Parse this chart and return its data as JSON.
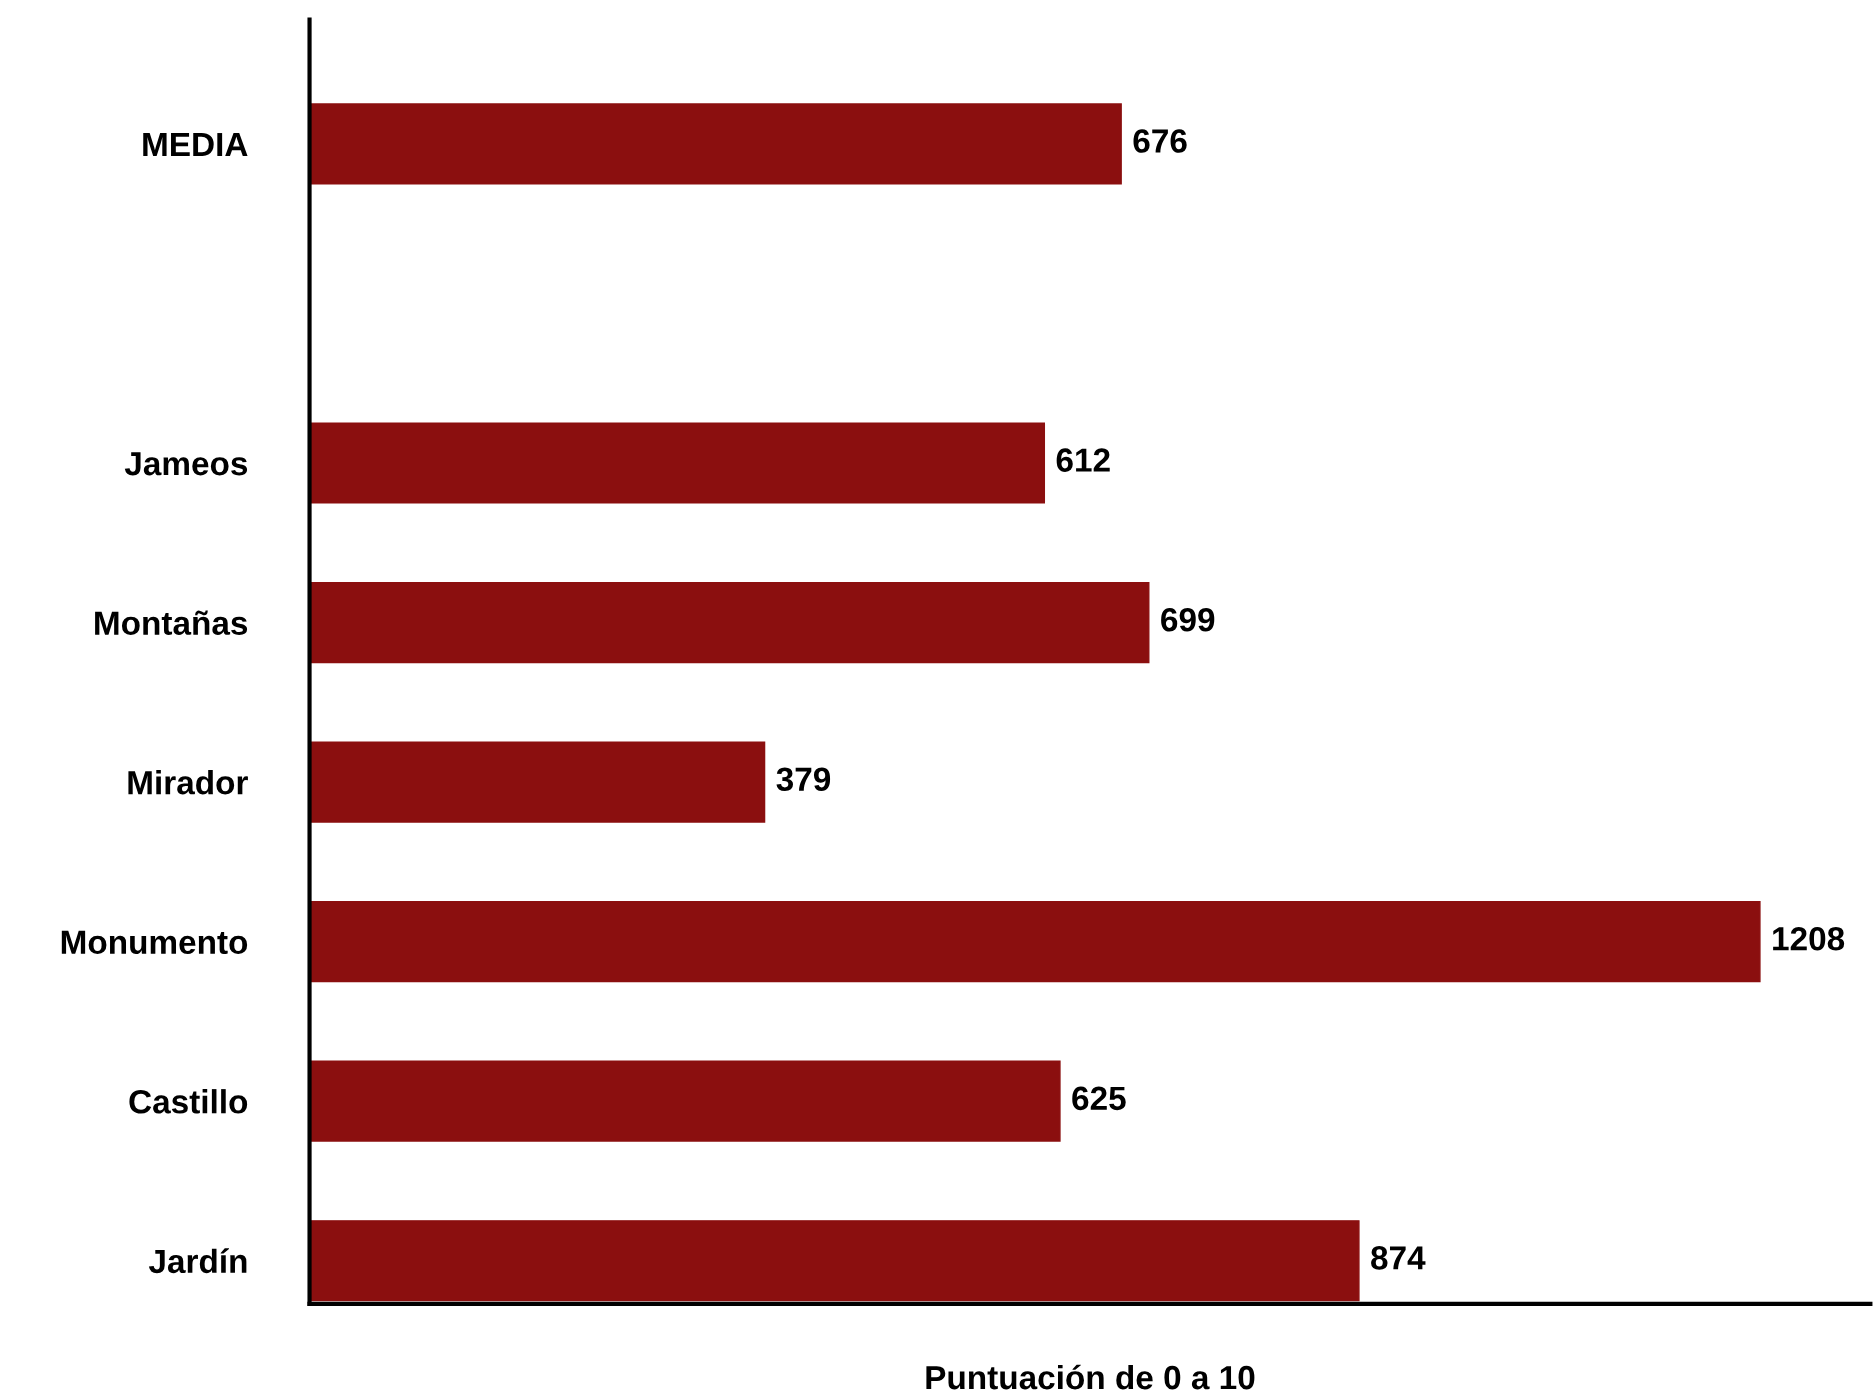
{
  "chart_data": {
    "type": "bar",
    "orientation": "horizontal",
    "xlabel": "Puntuación de 0 a 10",
    "categories": [
      "MEDIA",
      null,
      "Jameos",
      "Montañas",
      "Mirador",
      "Monumento",
      "Castillo",
      "Jardín"
    ],
    "values": [
      676,
      null,
      612,
      699,
      379,
      1208,
      625,
      874
    ],
    "color": "#8b0f0f",
    "xlim": [
      0,
      1300
    ],
    "data_labels": true,
    "tick_labels": "y",
    "grid": false,
    "legend": false
  }
}
